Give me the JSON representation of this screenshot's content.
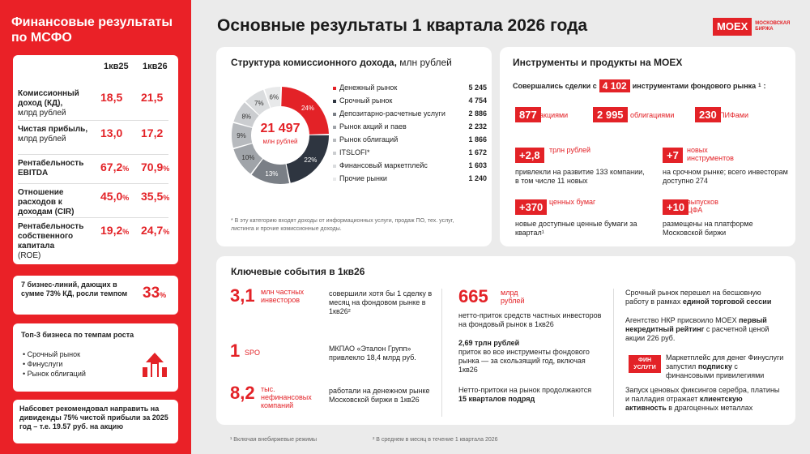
{
  "sidebar": {
    "title": "Финансовые результаты по МСФО",
    "col1": "1кв25",
    "col2": "1кв26",
    "rows": [
      {
        "label": "Комиссионный доход (КД),",
        "sub": "млрд рублей",
        "v1": "18,5",
        "v2": "21,5",
        "s1": "",
        "s2": ""
      },
      {
        "label": "Чистая прибыль,",
        "sub": "млрд рублей",
        "v1": "13,0",
        "v2": "17,2",
        "s1": "",
        "s2": ""
      },
      {
        "label": "Рентабельность EBITDA",
        "sub": "",
        "v1": "67,2",
        "v2": "70,9",
        "s1": "%",
        "s2": "%"
      },
      {
        "label": "Отношение расходов к доходам (CIR)",
        "sub": "",
        "v1": "45,0",
        "v2": "35,5",
        "s1": "%",
        "s2": "%"
      },
      {
        "label": "Рентабельность собственного капитала",
        "sub": "(ROE)",
        "v1": "19,2",
        "v2": "24,7",
        "s1": "%",
        "s2": "%"
      }
    ],
    "biz_lines": {
      "text": "7 бизнес-линий, дающих в сумме 73% КД, росли темпом",
      "value": "33",
      "suffix": "%"
    },
    "top3": {
      "title": "Топ-3 бизнеса по темпам роста",
      "items": [
        "Срочный рынок",
        "Финуслуги",
        "Рынок облигаций"
      ]
    },
    "dividend": "Набсовет рекомендовал направить на дивиденды 75% чистой прибыли за 2025 год – т.е. 19.57 руб. на акцию"
  },
  "header": {
    "title": "Основные результаты 1 квартала 2026 года",
    "logo": "MOEX",
    "logo_sub1": "МОСКОВСКАЯ",
    "logo_sub2": "БИРЖА"
  },
  "commission": {
    "title": "Структура комиссионного дохода,",
    "unit": "млн рублей",
    "total": "21 497",
    "total_unit": "млн рублей",
    "footnote": "* В эту категорию входят доходы от информационных услуги, продаж ПО, тех. услуг, листинга и прочие комиссионные доходы."
  },
  "chart_data": {
    "type": "pie",
    "title": "Структура комиссионного дохода, млн рублей",
    "categories": [
      "Денежный рынок",
      "Срочный рынок",
      "Депозитарно-расчетные услуги",
      "Рынок акций и паев",
      "Рынок облигаций",
      "ITSLOFI*",
      "Финансовый маркетплейс",
      "Прочие рынки"
    ],
    "values": [
      5245,
      4754,
      2886,
      2232,
      1866,
      1672,
      1603,
      1240
    ],
    "percent_labels": [
      "24%",
      "22%",
      "13%",
      "10%",
      "9%",
      "8%",
      "7%",
      "6%"
    ],
    "colors": [
      "#e32227",
      "#2e3540",
      "#7a7f86",
      "#a0a4a9",
      "#b7babe",
      "#cbcdd0",
      "#dadcde",
      "#e8e9ea"
    ]
  },
  "instruments": {
    "title": "Инструменты и продукты на MOEX",
    "deals_prefix": "Совершались сделки с",
    "deals_value": "4 102",
    "deals_suffix": "инструментами фондового рынка",
    "deals_sup": "1",
    "colon": ":",
    "counts": [
      {
        "value": "877",
        "label": "акциями"
      },
      {
        "value": "2 995",
        "label": "облигациями"
      },
      {
        "value": "230",
        "label": "ПИФами"
      }
    ],
    "blocks": [
      {
        "value": "+2,8",
        "red": "трлн рублей",
        "text": "привлекли на развитие 133 компании, в том числе 11 новых"
      },
      {
        "value": "+7",
        "red": "новых инструментов",
        "text": "на срочном рынке; всего инвесторам доступно 274"
      },
      {
        "value": "+370",
        "red": "ценных бумаг",
        "text": "новые доступные ценные бумаги за квартал¹"
      },
      {
        "value": "+10",
        "red": "выпусков ЦФА",
        "text": "размещены на платформе Московской биржи"
      }
    ]
  },
  "events": {
    "title": "Ключевые события в 1кв26",
    "left": [
      {
        "big": "3,1",
        "unit": "млн частных инвесторов",
        "text": "совершили хотя бы 1 сделку в месяц на фондовом рынке в 1кв26²"
      },
      {
        "big": "1",
        "unit": "SPO",
        "text": "МКПАО «Эталон Групп» привлекло 18,4 млрд руб."
      },
      {
        "big": "8,2",
        "unit": "тыс. нефинансовых компаний",
        "text": "работали на денежном рынке Московской биржи в 1кв26"
      }
    ],
    "mid": {
      "big": "665",
      "unit": "млрд рублей",
      "t1": "нетто-приток средств частных инвесторов на фондовый рынок в 1кв26",
      "t2b": "2,69 трлн рублей",
      "t2": "приток во все инструменты фондового рынка — за скользящий год, включая 1кв26",
      "t3": "Нетто-притоки на рынок продолжаются",
      "t3b": "15 кварталов подряд"
    },
    "right": [
      {
        "pre": "Срочный рынок перешел на бесшовную работу в рамках ",
        "bold": "единой торговой сессии",
        "post": ""
      },
      {
        "pre": "Агентство НКР присвоило MOEX ",
        "bold": "первый некредитный рейтинг",
        "post": " с расчетной ценой акции 226 руб."
      },
      {
        "pre": "Маркетплейс для денег Финуслуги запустил ",
        "bold": "подписку",
        "post": " с финансовыми привилегиями"
      },
      {
        "pre": "Запуск ценовых фиксингов серебра, платины и палладия отражает ",
        "bold": "клиентскую активность",
        "post": " в драгоценных металлах"
      }
    ],
    "fin_badge1": "ФИН",
    "fin_badge2": "УСЛУГИ"
  },
  "footnotes": {
    "f1": "¹ Включая внебиржевые режимы",
    "f2": "² В среднем в месяц в течение 1 квартала 2026"
  }
}
